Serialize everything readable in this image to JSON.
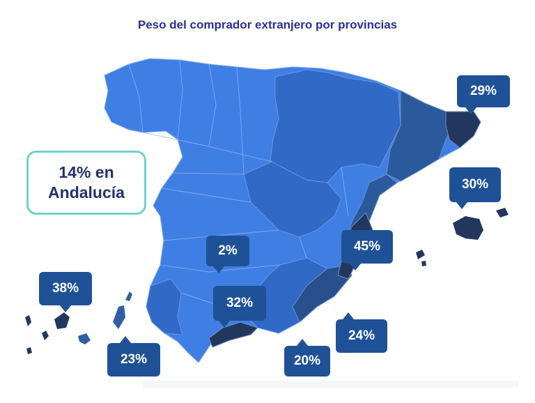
{
  "title": "Peso del comprador extranjero por provincias",
  "highlight": {
    "line1": "14% en",
    "line2": "Andalucía"
  },
  "colors": {
    "light": "#3f7fe4",
    "medium": "#2f67c2",
    "dark": "#2b5a9c",
    "darkest": "#23375e",
    "callout": "#1f5197",
    "highlight_border": "#6fd3cc"
  },
  "callouts": {
    "girona": "29%",
    "baleares": "30%",
    "alicante": "45%",
    "madrid": "2%",
    "canarias": "38%",
    "las_palmas": "23%",
    "cordoba_granada": "32%",
    "murcia": "24%",
    "almeria": "20%"
  }
}
